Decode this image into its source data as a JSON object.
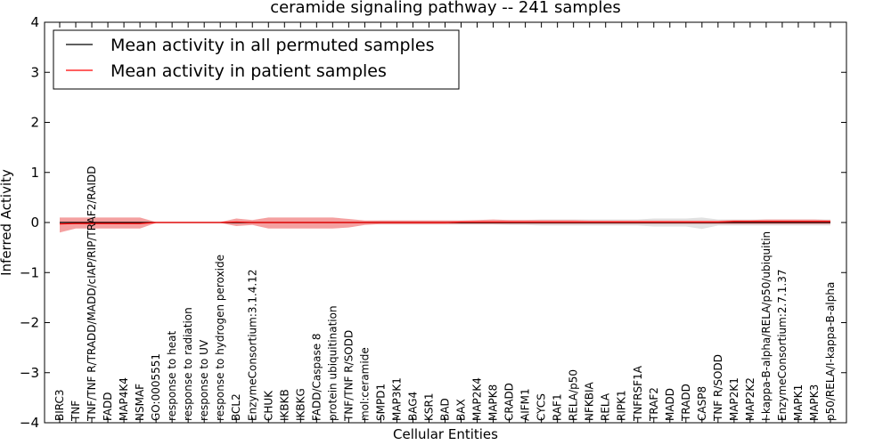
{
  "chart_data": {
    "type": "line",
    "title": "ceramide signaling pathway -- 241 samples",
    "xlabel": "Cellular Entities",
    "ylabel": "Inferred Activity",
    "ylim": [
      -4,
      4
    ],
    "yticks": [
      "−4",
      "−3",
      "−2",
      "−1",
      "0",
      "1",
      "2",
      "3",
      "4"
    ],
    "grid": false,
    "legend_position": "top-left",
    "colors": {
      "permuted_line": "#000000",
      "permuted_band": "#c8c8c8",
      "patient_line": "#ff0000",
      "patient_band": "#f08080"
    },
    "categories": [
      "BIRC3",
      "TNF",
      "TNF/TNF R/TRADD/MADD/cIAP/RIP/TRAF2/RAIDD",
      "FADD",
      "MAP4K4",
      "NSMAF",
      "GO:0005551",
      "response to heat",
      "response to radiation",
      "response to UV",
      "response to hydrogen peroxide",
      "BCL2",
      "EnzymeConsortium:3.1.4.12",
      "CHUK",
      "IKBKB",
      "IKBKG",
      "FADD/Caspase 8",
      "protein ubiquitination",
      "TNF/TNF R/SODD",
      "mol:ceramide",
      "SMPD1",
      "MAP3K1",
      "BAG4",
      "KSR1",
      "BAD",
      "BAX",
      "MAP2K4",
      "MAPK8",
      "CRADD",
      "AIFM1",
      "CYCS",
      "RAF1",
      "RELA/p50",
      "NFKBIA",
      "RELA",
      "RIPK1",
      "TNFRSF1A",
      "TRAF2",
      "MADD",
      "TRADD",
      "CASP8",
      "TNF R/SODD",
      "MAP2K1",
      "MAP2K2",
      "I-kappa-B-alpha/RELA/p50/ubiquitin",
      "EnzymeConsortium:2.7.1.37",
      "MAPK1",
      "MAPK3",
      "p50/RELA/I-kappa-B-alpha"
    ],
    "series": [
      {
        "name": "Mean activity in all permuted samples",
        "values": [
          0,
          0,
          0,
          0,
          0,
          0,
          0,
          0,
          0,
          0,
          0,
          0,
          0,
          0,
          0,
          0,
          0,
          0,
          0,
          0,
          0,
          0,
          0,
          0,
          0,
          0,
          0,
          0,
          0,
          0,
          0,
          0,
          0,
          0,
          0,
          0,
          0,
          0,
          0,
          0,
          0,
          0,
          0,
          0,
          0,
          0,
          0,
          0,
          0
        ],
        "lower": [
          -0.02,
          -0.02,
          -0.02,
          -0.02,
          -0.02,
          -0.02,
          -0.005,
          -0.005,
          -0.005,
          -0.005,
          -0.005,
          -0.03,
          -0.02,
          -0.02,
          -0.02,
          -0.02,
          -0.02,
          -0.02,
          -0.02,
          -0.02,
          -0.04,
          -0.04,
          -0.04,
          -0.04,
          -0.04,
          -0.04,
          -0.04,
          -0.04,
          -0.05,
          -0.05,
          -0.06,
          -0.06,
          -0.06,
          -0.06,
          -0.06,
          -0.06,
          -0.06,
          -0.08,
          -0.08,
          -0.08,
          -0.13,
          -0.06,
          -0.06,
          -0.06,
          -0.06,
          -0.06,
          -0.06,
          -0.06,
          -0.06
        ],
        "upper": [
          0.02,
          0.02,
          0.02,
          0.02,
          0.02,
          0.02,
          0.005,
          0.005,
          0.005,
          0.005,
          0.005,
          0.03,
          0.02,
          0.02,
          0.02,
          0.02,
          0.02,
          0.02,
          0.02,
          0.02,
          0.04,
          0.04,
          0.04,
          0.04,
          0.04,
          0.04,
          0.04,
          0.04,
          0.05,
          0.05,
          0.06,
          0.06,
          0.06,
          0.06,
          0.06,
          0.06,
          0.06,
          0.08,
          0.08,
          0.08,
          0.1,
          0.06,
          0.06,
          0.06,
          0.06,
          0.06,
          0.06,
          0.06,
          0.06
        ]
      },
      {
        "name": "Mean activity in patient samples",
        "values": [
          -0.03,
          -0.02,
          -0.02,
          -0.02,
          -0.02,
          -0.02,
          0,
          0,
          0,
          0,
          0,
          0.01,
          0,
          0,
          0,
          0,
          0,
          0,
          0,
          0,
          0,
          0,
          0,
          0,
          0,
          0.01,
          0.01,
          0.01,
          0.01,
          0.01,
          0.01,
          0.01,
          0.01,
          0.01,
          0.01,
          0.01,
          0.01,
          0.01,
          0.01,
          0.01,
          0.01,
          0.01,
          0.02,
          0.02,
          0.02,
          0.02,
          0.02,
          0.02,
          0.02
        ],
        "lower": [
          -0.2,
          -0.12,
          -0.12,
          -0.12,
          -0.12,
          -0.12,
          -0.01,
          -0.01,
          -0.01,
          -0.01,
          -0.01,
          -0.07,
          -0.05,
          -0.12,
          -0.12,
          -0.12,
          -0.12,
          -0.12,
          -0.1,
          -0.05,
          -0.03,
          -0.03,
          -0.03,
          -0.03,
          -0.03,
          -0.03,
          -0.03,
          -0.03,
          -0.03,
          -0.03,
          -0.03,
          -0.03,
          -0.03,
          -0.03,
          -0.03,
          -0.03,
          -0.03,
          -0.03,
          -0.03,
          -0.03,
          -0.03,
          -0.03,
          -0.03,
          -0.03,
          -0.03,
          -0.03,
          -0.03,
          -0.03,
          -0.03
        ],
        "upper": [
          0.1,
          0.1,
          0.1,
          0.1,
          0.1,
          0.1,
          0.01,
          0.01,
          0.01,
          0.01,
          0.01,
          0.08,
          0.05,
          0.1,
          0.1,
          0.1,
          0.1,
          0.1,
          0.07,
          0.04,
          0.04,
          0.04,
          0.04,
          0.04,
          0.04,
          0.04,
          0.05,
          0.06,
          0.05,
          0.05,
          0.05,
          0.05,
          0.05,
          0.04,
          0.04,
          0.04,
          0.04,
          0.04,
          0.04,
          0.04,
          0.04,
          0.04,
          0.05,
          0.05,
          0.06,
          0.06,
          0.06,
          0.06,
          0.05
        ]
      }
    ]
  }
}
